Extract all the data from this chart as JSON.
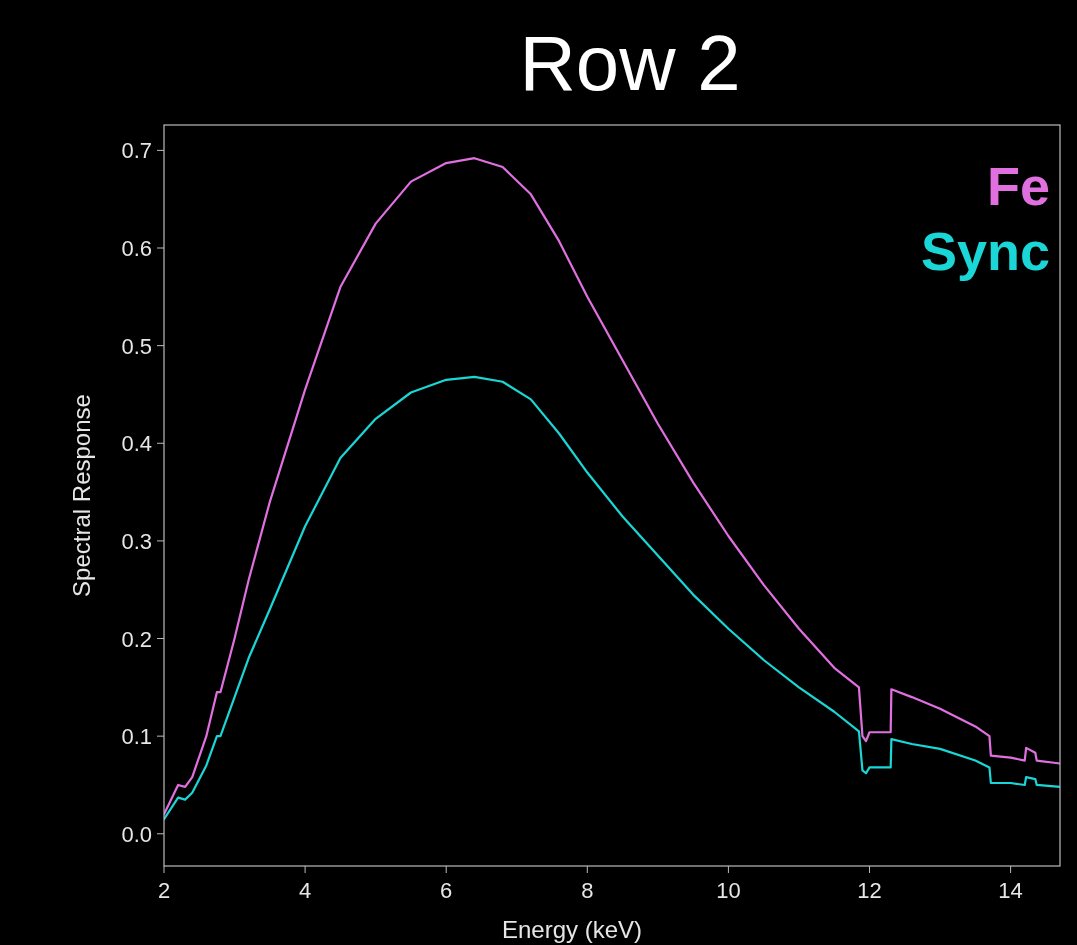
{
  "chart_data": {
    "type": "line",
    "title": "Row 2",
    "xlabel": "Energy (keV)",
    "ylabel": "Spectral Response",
    "x": [
      2.0,
      2.2,
      2.3,
      2.4,
      2.6,
      2.75,
      2.8,
      3.0,
      3.2,
      3.5,
      4.0,
      4.5,
      5.0,
      5.5,
      6.0,
      6.4,
      6.8,
      7.2,
      7.6,
      8.0,
      8.5,
      9.0,
      9.5,
      10.0,
      10.5,
      11.0,
      11.5,
      11.85,
      11.9,
      11.95,
      12.0,
      12.3,
      12.31,
      12.6,
      13.0,
      13.5,
      13.7,
      13.72,
      14.0,
      14.2,
      14.22,
      14.35,
      14.37,
      14.7
    ],
    "series": [
      {
        "name": "Fe",
        "color": "#e070e0",
        "values": [
          0.02,
          0.05,
          0.048,
          0.058,
          0.1,
          0.145,
          0.145,
          0.2,
          0.26,
          0.34,
          0.455,
          0.56,
          0.625,
          0.668,
          0.687,
          0.692,
          0.683,
          0.655,
          0.607,
          0.55,
          0.485,
          0.42,
          0.36,
          0.305,
          0.255,
          0.21,
          0.17,
          0.15,
          0.1,
          0.095,
          0.104,
          0.104,
          0.148,
          0.14,
          0.128,
          0.11,
          0.1,
          0.08,
          0.078,
          0.075,
          0.088,
          0.083,
          0.075,
          0.072
        ]
      },
      {
        "name": "Sync",
        "color": "#1ad6d6",
        "values": [
          0.015,
          0.037,
          0.035,
          0.042,
          0.07,
          0.1,
          0.1,
          0.14,
          0.18,
          0.23,
          0.315,
          0.385,
          0.425,
          0.452,
          0.465,
          0.468,
          0.463,
          0.445,
          0.41,
          0.37,
          0.325,
          0.285,
          0.245,
          0.21,
          0.178,
          0.15,
          0.125,
          0.105,
          0.065,
          0.062,
          0.068,
          0.068,
          0.097,
          0.092,
          0.087,
          0.075,
          0.068,
          0.052,
          0.052,
          0.05,
          0.058,
          0.056,
          0.05,
          0.048
        ]
      }
    ],
    "xlim": [
      2,
      14.7
    ],
    "ylim": [
      -0.033,
      0.726
    ],
    "xticks": [
      2,
      4,
      6,
      8,
      10,
      12,
      14
    ],
    "yticks": [
      {
        "value": 0,
        "label": "0.0"
      },
      0.1,
      0.2,
      0.3,
      0.4,
      0.5,
      0.6,
      0.7
    ],
    "legend": "top right",
    "grid": false
  }
}
